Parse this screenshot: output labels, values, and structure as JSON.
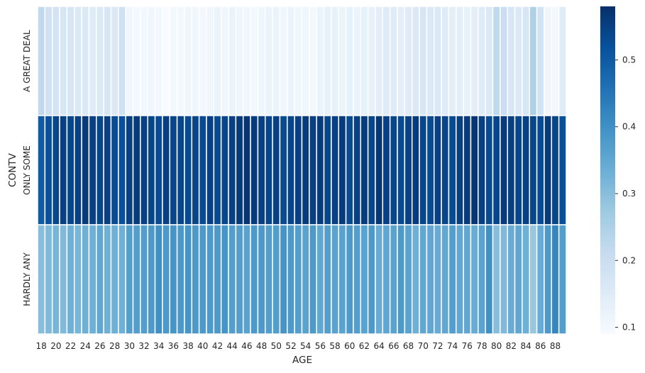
{
  "chart_data": {
    "type": "heatmap",
    "colormap": "Blues",
    "xlabel": "AGE",
    "ylabel": "CONTV",
    "rows": [
      "A GREAT DEAL",
      "ONLY SOME",
      "HARDLY ANY"
    ],
    "x": [
      18,
      19,
      20,
      21,
      22,
      23,
      24,
      25,
      26,
      27,
      28,
      29,
      30,
      31,
      32,
      33,
      34,
      35,
      36,
      37,
      38,
      39,
      40,
      41,
      42,
      43,
      44,
      45,
      46,
      47,
      48,
      49,
      50,
      51,
      52,
      53,
      54,
      55,
      56,
      57,
      58,
      59,
      60,
      61,
      62,
      63,
      64,
      65,
      66,
      67,
      68,
      69,
      70,
      71,
      72,
      73,
      74,
      75,
      76,
      77,
      78,
      79,
      80,
      81,
      82,
      83,
      84,
      85,
      86,
      87,
      88,
      89
    ],
    "x_tick_labels": [
      "18",
      "20",
      "22",
      "24",
      "26",
      "28",
      "30",
      "32",
      "34",
      "36",
      "38",
      "40",
      "42",
      "44",
      "46",
      "48",
      "50",
      "52",
      "54",
      "56",
      "58",
      "60",
      "62",
      "64",
      "66",
      "68",
      "70",
      "72",
      "74",
      "76",
      "78",
      "80",
      "82",
      "84",
      "86",
      "88"
    ],
    "values": [
      [
        0.22,
        0.19,
        0.18,
        0.17,
        0.17,
        0.16,
        0.16,
        0.15,
        0.16,
        0.17,
        0.16,
        0.19,
        0.11,
        0.1,
        0.1,
        0.11,
        0.1,
        0.09,
        0.1,
        0.1,
        0.11,
        0.11,
        0.1,
        0.11,
        0.12,
        0.11,
        0.12,
        0.11,
        0.11,
        0.1,
        0.11,
        0.12,
        0.12,
        0.11,
        0.12,
        0.11,
        0.11,
        0.1,
        0.12,
        0.13,
        0.13,
        0.12,
        0.13,
        0.12,
        0.13,
        0.13,
        0.14,
        0.15,
        0.15,
        0.14,
        0.15,
        0.16,
        0.17,
        0.16,
        0.16,
        0.15,
        0.14,
        0.14,
        0.13,
        0.14,
        0.15,
        0.16,
        0.22,
        0.2,
        0.17,
        0.16,
        0.17,
        0.25,
        0.18,
        0.11,
        0.1,
        0.15
      ],
      [
        0.5,
        0.52,
        0.54,
        0.55,
        0.54,
        0.55,
        0.56,
        0.55,
        0.54,
        0.55,
        0.53,
        0.52,
        0.55,
        0.56,
        0.55,
        0.54,
        0.53,
        0.55,
        0.54,
        0.54,
        0.53,
        0.54,
        0.53,
        0.55,
        0.53,
        0.54,
        0.55,
        0.56,
        0.57,
        0.56,
        0.55,
        0.54,
        0.55,
        0.53,
        0.54,
        0.55,
        0.56,
        0.55,
        0.56,
        0.54,
        0.55,
        0.56,
        0.53,
        0.55,
        0.56,
        0.54,
        0.57,
        0.55,
        0.54,
        0.53,
        0.55,
        0.56,
        0.54,
        0.53,
        0.55,
        0.54,
        0.53,
        0.55,
        0.56,
        0.57,
        0.55,
        0.53,
        0.54,
        0.56,
        0.55,
        0.54,
        0.55,
        0.54,
        0.53,
        0.56,
        0.54,
        0.52
      ],
      [
        0.3,
        0.31,
        0.32,
        0.31,
        0.33,
        0.32,
        0.33,
        0.33,
        0.35,
        0.33,
        0.33,
        0.33,
        0.37,
        0.37,
        0.37,
        0.38,
        0.4,
        0.38,
        0.39,
        0.38,
        0.39,
        0.38,
        0.38,
        0.38,
        0.38,
        0.39,
        0.37,
        0.37,
        0.36,
        0.38,
        0.38,
        0.37,
        0.37,
        0.39,
        0.38,
        0.37,
        0.36,
        0.38,
        0.35,
        0.37,
        0.36,
        0.36,
        0.38,
        0.37,
        0.36,
        0.38,
        0.34,
        0.35,
        0.36,
        0.38,
        0.36,
        0.33,
        0.35,
        0.35,
        0.34,
        0.35,
        0.37,
        0.35,
        0.35,
        0.34,
        0.36,
        0.4,
        0.3,
        0.31,
        0.34,
        0.35,
        0.33,
        0.28,
        0.34,
        0.38,
        0.42,
        0.37
      ]
    ],
    "colorbar": {
      "min": 0.09,
      "max": 0.58,
      "ticks": [
        "0.1",
        "0.2",
        "0.3",
        "0.4",
        "0.5"
      ]
    }
  }
}
